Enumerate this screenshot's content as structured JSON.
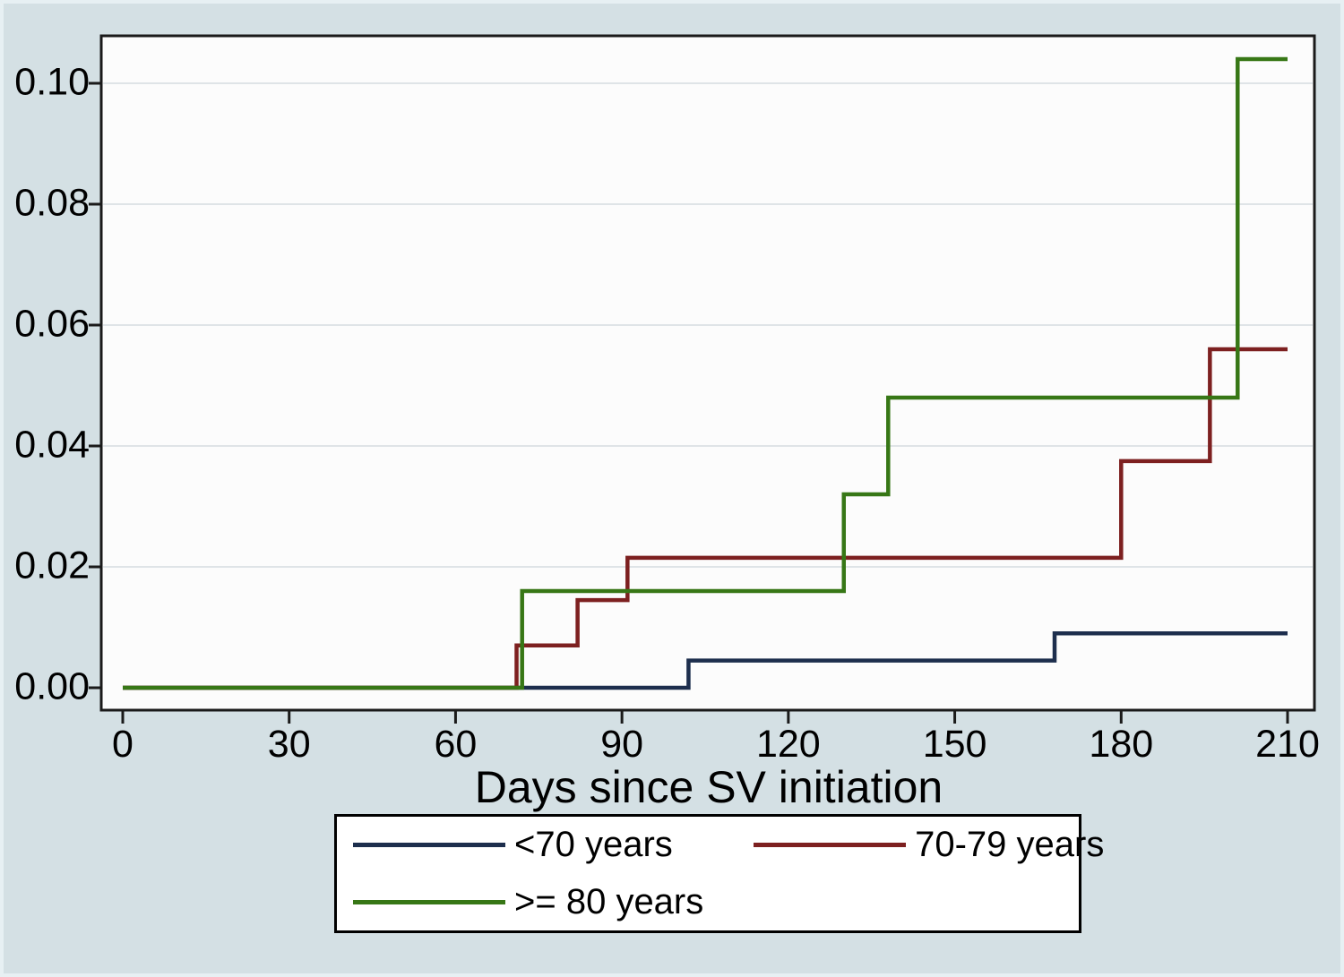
{
  "figure": {
    "background": "#d4e0e4",
    "plot_background": "#fcfcfc",
    "grid_color": "#dfe4e7",
    "frame_color": "#1a1a1a",
    "tick_color": "#1a1a1a"
  },
  "axes": {
    "x_label": "Days since SV initiation",
    "x_ticks": [
      0,
      30,
      60,
      90,
      120,
      150,
      180,
      210
    ],
    "y_ticks": [
      0,
      0.02,
      0.04,
      0.06,
      0.08,
      0.1
    ],
    "y_tick_labels": [
      "0.00",
      "0.02",
      "0.04",
      "0.06",
      "0.08",
      "0.10"
    ]
  },
  "legend": {
    "items": [
      {
        "label": "<70 years",
        "color": "#1d2e4d"
      },
      {
        "label": "70-79 years",
        "color": "#7d2020"
      },
      {
        "label": ">= 80 years",
        "color": "#377716"
      }
    ]
  },
  "chart_data": {
    "type": "line",
    "subtype": "step-function-cumulative-incidence",
    "title": "",
    "xlabel": "Days since SV initiation",
    "ylabel": "",
    "xlim": [
      0,
      210
    ],
    "ylim": [
      0,
      0.1
    ],
    "grid": "horizontal",
    "legend_position": "bottom",
    "series": [
      {
        "name": "<70 years",
        "color": "#1d2e4d",
        "steps": [
          [
            102,
            0.0045
          ],
          [
            168,
            0.009
          ]
        ],
        "end_x": 210,
        "end_value": 0.009
      },
      {
        "name": "70-79 years",
        "color": "#7d2020",
        "steps": [
          [
            71,
            0.007
          ],
          [
            82,
            0.0145
          ],
          [
            91,
            0.0215
          ],
          [
            180,
            0.0375
          ],
          [
            196,
            0.056
          ]
        ],
        "end_x": 210,
        "end_value": 0.056
      },
      {
        "name": ">= 80 years",
        "color": "#377716",
        "steps": [
          [
            72,
            0.016
          ],
          [
            130,
            0.032
          ],
          [
            138,
            0.048
          ],
          [
            201,
            0.104
          ]
        ],
        "end_x": 210,
        "end_value": 0.104
      }
    ]
  }
}
